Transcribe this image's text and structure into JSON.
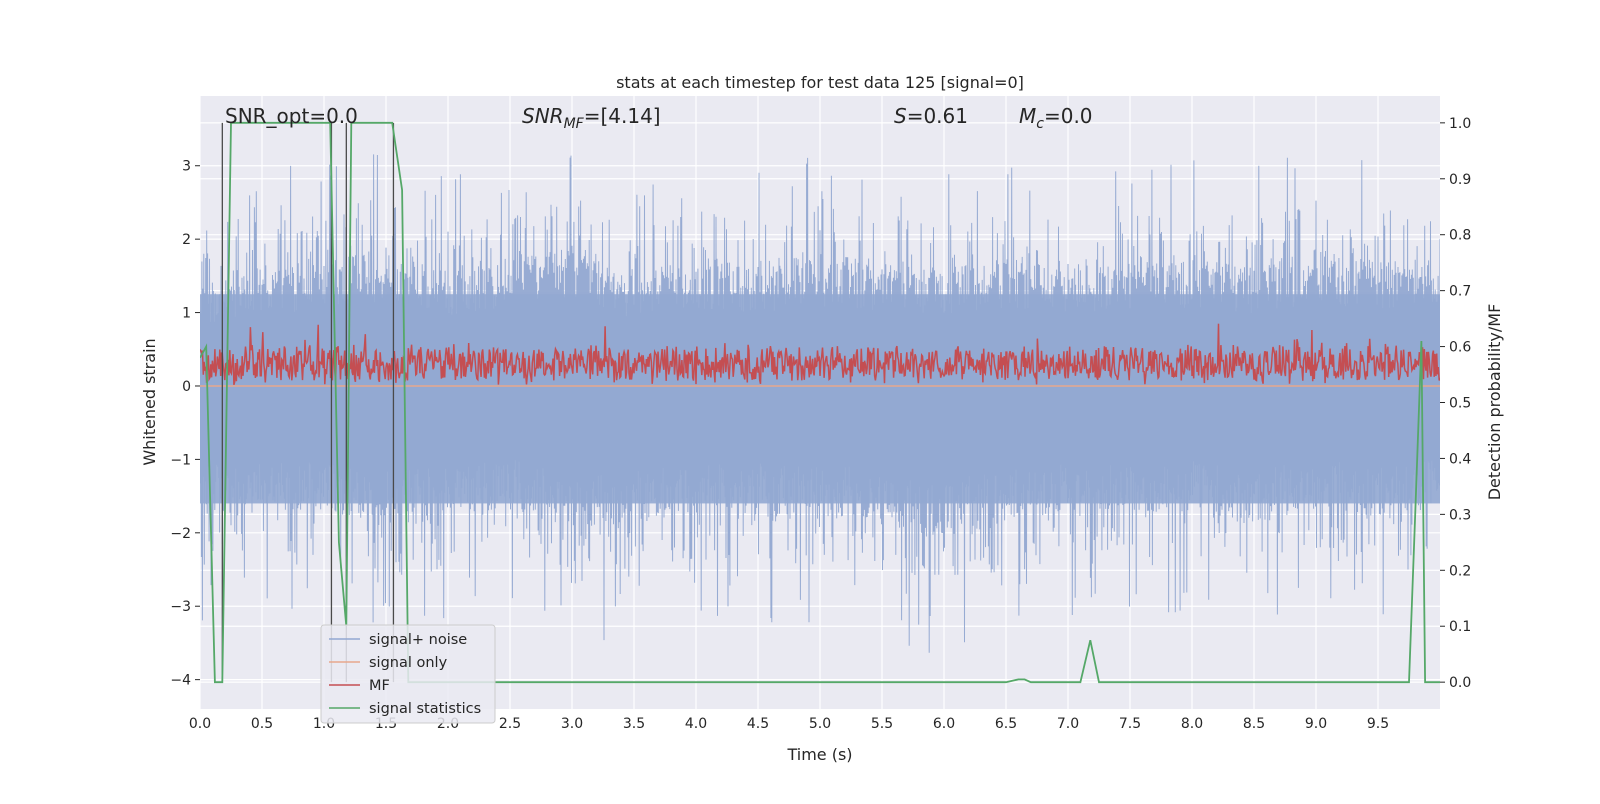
{
  "chart_data": {
    "type": "line",
    "title": "stats at each timestep for test data 125 [signal=0]",
    "xlabel": "Time (s)",
    "ylabel_left": "Whitened strain",
    "ylabel_right": "Detection probability/MF",
    "xlim": [
      0.0,
      10.0
    ],
    "ylim_left": [
      -4.4,
      3.95
    ],
    "ylim_right": [
      -0.048,
      1.048
    ],
    "xticks": [
      0.0,
      0.5,
      1.0,
      1.5,
      2.0,
      2.5,
      3.0,
      3.5,
      4.0,
      4.5,
      5.0,
      5.5,
      6.0,
      6.5,
      7.0,
      7.5,
      8.0,
      8.5,
      9.0,
      9.5
    ],
    "xtick_labels": [
      "0.0",
      "0.5",
      "1.0",
      "1.5",
      "2.0",
      "2.5",
      "3.0",
      "3.5",
      "4.0",
      "4.5",
      "5.0",
      "5.5",
      "6.0",
      "6.5",
      "7.0",
      "7.5",
      "8.0",
      "8.5",
      "9.0",
      "9.5"
    ],
    "yticks_left": [
      3,
      2,
      1,
      0,
      -1,
      -2,
      -3,
      -4
    ],
    "ytick_labels_left": [
      "3",
      "2",
      "1",
      "0",
      "−1",
      "−2",
      "−3",
      "−4"
    ],
    "yticks_right": [
      1.0,
      0.9,
      0.8,
      0.7,
      0.6,
      0.5,
      0.4,
      0.3,
      0.2,
      0.1,
      0.0
    ],
    "ytick_labels_right": [
      "1.0",
      "0.9",
      "0.8",
      "0.7",
      "0.6",
      "0.5",
      "0.4",
      "0.3",
      "0.2",
      "0.1",
      "0.0"
    ],
    "grid": true,
    "legend_position": "lower-left",
    "annotations": {
      "snr_opt": "SNR_opt=0.0",
      "snr_mf": "SNR",
      "snr_mf_sub": "MF",
      "snr_mf_value": "=[4.14]",
      "s_label": "S",
      "s_value": "=0.61",
      "mc_label": "M",
      "mc_sub": "c",
      "mc_value": "=0.0"
    },
    "series": [
      {
        "name": "signal+ noise",
        "color": "#92a8d1",
        "axis": "left",
        "description_envelope": {
          "x": [
            0.0,
            0.5,
            1.0,
            1.5,
            2.0,
            2.5,
            3.0,
            3.5,
            4.0,
            4.5,
            5.0,
            5.5,
            6.0,
            6.5,
            7.0,
            7.5,
            8.0,
            8.5,
            9.0,
            9.5,
            10.0
          ],
          "upper": [
            2.4,
            3.0,
            3.1,
            3.5,
            2.9,
            3.3,
            3.4,
            2.8,
            3.2,
            3.0,
            3.3,
            3.1,
            2.9,
            3.2,
            3.0,
            3.1,
            3.2,
            3.0,
            3.4,
            3.1,
            3.2
          ],
          "lower": [
            -3.3,
            -3.0,
            -3.1,
            -3.5,
            -3.3,
            -3.0,
            -3.7,
            -3.5,
            -3.1,
            -3.2,
            -3.3,
            -3.3,
            -3.9,
            -3.4,
            -3.2,
            -3.3,
            -3.1,
            -3.5,
            -3.0,
            -3.3,
            -3.0
          ]
        }
      },
      {
        "name": "signal only",
        "color": "#e8a88c",
        "axis": "left",
        "x": [
          0.0,
          10.0
        ],
        "y": [
          0.0,
          0.0
        ]
      },
      {
        "name": "MF",
        "color": "#c44e52",
        "axis": "left",
        "baseline": 0.3,
        "spread": 0.3
      },
      {
        "name": "signal statistics",
        "color": "#55a868",
        "axis": "right",
        "x": [
          0.0,
          0.05,
          0.12,
          0.18,
          0.25,
          0.3,
          0.5,
          1.0,
          1.05,
          1.12,
          1.18,
          1.22,
          1.3,
          1.5,
          1.55,
          1.63,
          1.68,
          1.75,
          6.5,
          6.6,
          6.65,
          6.7,
          7.1,
          7.18,
          7.25,
          7.3,
          9.75,
          9.8,
          9.85,
          9.88,
          10.0
        ],
        "y": [
          0.58,
          0.6,
          0.0,
          0.0,
          1.0,
          1.0,
          1.0,
          1.0,
          1.0,
          0.25,
          0.1,
          1.0,
          1.0,
          1.0,
          1.0,
          0.88,
          0.0,
          0.0,
          0.0,
          0.005,
          0.005,
          0.0,
          0.0,
          0.075,
          0.0,
          0.0,
          0.0,
          0.3,
          0.61,
          0.0,
          0.0
        ]
      }
    ],
    "vertical_lines": [
      0.18,
      1.06,
      1.18,
      1.56
    ]
  }
}
